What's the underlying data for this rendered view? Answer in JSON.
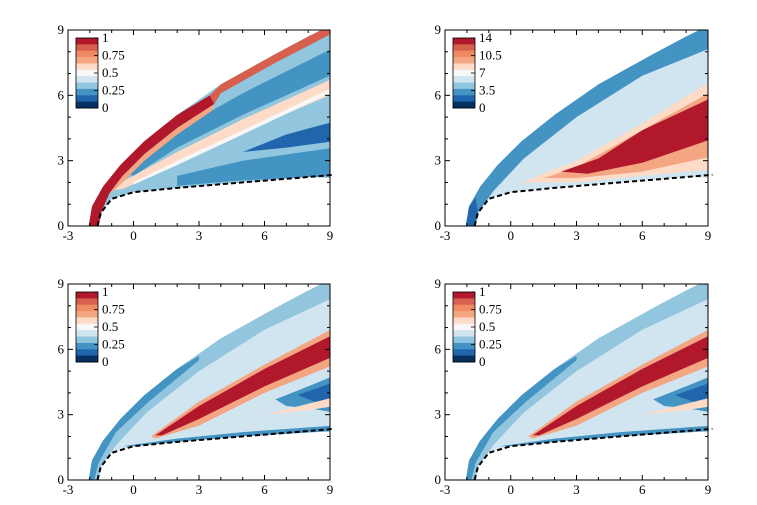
{
  "chart_data": [
    {
      "type": "heatmap",
      "panel": "top-left",
      "title": "",
      "xlabel": "",
      "ylabel": "",
      "xlim": [
        -3,
        9
      ],
      "ylim": [
        0,
        9
      ],
      "x_ticks": [
        "-3",
        "0",
        "3",
        "6",
        "9"
      ],
      "y_ticks": [
        "0",
        "3",
        "6",
        "9"
      ],
      "colorbar": {
        "min": 0,
        "max": 1,
        "labels": [
          "1",
          "0.75",
          "0.5",
          "0.25",
          "0"
        ]
      },
      "colormap": [
        "#b2182b",
        "#ef8a62",
        "#fddbc7",
        "#f7f7f7",
        "#d1e5f0",
        "#67a9cf",
        "#2166ac"
      ],
      "features": [
        "red band along shock",
        "light streak along shear layer",
        "blue pockets behind shock"
      ],
      "legend_position": "top-left",
      "dashed_line": "body / dividing streamline"
    },
    {
      "type": "heatmap",
      "panel": "top-right",
      "title": "",
      "xlabel": "",
      "ylabel": "",
      "xlim": [
        -3,
        9
      ],
      "ylim": [
        0,
        9
      ],
      "x_ticks": [
        "-3",
        "0",
        "3",
        "6",
        "9"
      ],
      "y_ticks": [
        "0",
        "3",
        "6",
        "9"
      ],
      "colorbar": {
        "min": 0,
        "max": 14,
        "labels": [
          "14",
          "10.5",
          "7",
          "3.5",
          "0"
        ]
      },
      "colormap": [
        "#b2182b",
        "#ef8a62",
        "#fddbc7",
        "#f7f7f7",
        "#d1e5f0",
        "#67a9cf",
        "#2166ac"
      ],
      "features": [
        "red core centered near x=4.5, y=3.8"
      ],
      "legend_position": "top-left",
      "dashed_line": "body / dividing streamline"
    },
    {
      "type": "heatmap",
      "panel": "bottom-left",
      "title": "",
      "xlabel": "",
      "ylabel": "",
      "xlim": [
        -3,
        9
      ],
      "ylim": [
        0,
        9
      ],
      "x_ticks": [
        "-3",
        "0",
        "3",
        "6",
        "9"
      ],
      "y_ticks": [
        "0",
        "3",
        "6",
        "9"
      ],
      "colorbar": {
        "min": 0,
        "max": 1,
        "labels": [
          "1",
          "0.75",
          "0.5",
          "0.25",
          "0"
        ]
      },
      "colormap": [
        "#b2182b",
        "#ef8a62",
        "#fddbc7",
        "#f7f7f7",
        "#d1e5f0",
        "#67a9cf",
        "#2166ac"
      ],
      "features": [
        "red diagonal band from x=1,y=2 to x=9,y=6.3"
      ],
      "legend_position": "top-left",
      "dashed_line": "body / dividing streamline"
    },
    {
      "type": "heatmap",
      "panel": "bottom-right",
      "title": "",
      "xlabel": "",
      "ylabel": "",
      "xlim": [
        -3,
        9
      ],
      "ylim": [
        0,
        9
      ],
      "x_ticks": [
        "-3",
        "0",
        "3",
        "6",
        "9"
      ],
      "y_ticks": [
        "0",
        "3",
        "6",
        "9"
      ],
      "colorbar": {
        "min": 0,
        "max": 1,
        "labels": [
          "1",
          "0.75",
          "0.5",
          "0.25",
          "0"
        ]
      },
      "colormap": [
        "#b2182b",
        "#ef8a62",
        "#fddbc7",
        "#f7f7f7",
        "#d1e5f0",
        "#67a9cf",
        "#2166ac"
      ],
      "features": [
        "red diagonal band from x=1,y=2 to x=9,y=6.3"
      ],
      "legend_position": "top-left",
      "dashed_line": "body / dividing streamline"
    }
  ]
}
